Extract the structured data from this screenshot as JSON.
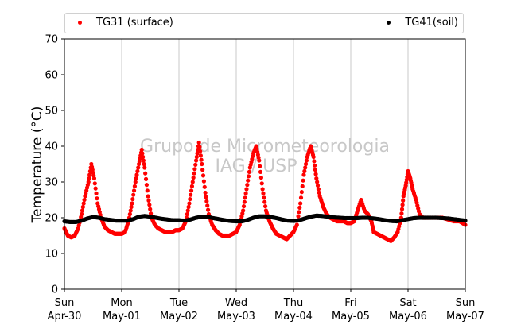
{
  "chart_data": {
    "type": "scatter",
    "ylabel": "Temperature (°C)",
    "ylim": [
      0,
      70
    ],
    "y_ticks": [
      "0",
      "10",
      "20",
      "30",
      "40",
      "50",
      "60",
      "70"
    ],
    "x_ticks": [
      {
        "day": "Sun",
        "date": "Apr-30"
      },
      {
        "day": "Mon",
        "date": "May-01"
      },
      {
        "day": "Tue",
        "date": "May-02"
      },
      {
        "day": "Wed",
        "date": "May-03"
      },
      {
        "day": "Thu",
        "date": "May-04"
      },
      {
        "day": "Fri",
        "date": "May-05"
      },
      {
        "day": "Sat",
        "date": "May-06"
      },
      {
        "day": "Sun",
        "date": "May-07"
      }
    ],
    "x_unit": "days",
    "xlim": [
      0,
      7
    ],
    "grid": "vertical",
    "legend_position": "top",
    "watermark": [
      "Grupo de Micrometeorologia",
      "IAG / USP"
    ],
    "series": [
      {
        "name": "TG31 (surface)",
        "color": "#ff0000",
        "points": [
          [
            0.0,
            17
          ],
          [
            0.06,
            15
          ],
          [
            0.12,
            14.5
          ],
          [
            0.18,
            15
          ],
          [
            0.24,
            17
          ],
          [
            0.3,
            21
          ],
          [
            0.36,
            26
          ],
          [
            0.42,
            30
          ],
          [
            0.47,
            35
          ],
          [
            0.52,
            31
          ],
          [
            0.58,
            24
          ],
          [
            0.64,
            20
          ],
          [
            0.7,
            17.5
          ],
          [
            0.76,
            16.5
          ],
          [
            0.82,
            16
          ],
          [
            0.88,
            15.5
          ],
          [
            0.94,
            15.5
          ],
          [
            1.0,
            15.5
          ],
          [
            1.06,
            16
          ],
          [
            1.12,
            19
          ],
          [
            1.18,
            24
          ],
          [
            1.24,
            30
          ],
          [
            1.3,
            35
          ],
          [
            1.35,
            39
          ],
          [
            1.4,
            34
          ],
          [
            1.46,
            26
          ],
          [
            1.52,
            20
          ],
          [
            1.58,
            18
          ],
          [
            1.64,
            17
          ],
          [
            1.7,
            16.5
          ],
          [
            1.76,
            16
          ],
          [
            1.82,
            16
          ],
          [
            1.88,
            16
          ],
          [
            1.94,
            16.5
          ],
          [
            2.0,
            16.5
          ],
          [
            2.06,
            17
          ],
          [
            2.12,
            19
          ],
          [
            2.18,
            24
          ],
          [
            2.24,
            30
          ],
          [
            2.3,
            36
          ],
          [
            2.35,
            41
          ],
          [
            2.4,
            35
          ],
          [
            2.46,
            27
          ],
          [
            2.52,
            21
          ],
          [
            2.58,
            18
          ],
          [
            2.64,
            16.5
          ],
          [
            2.7,
            15.5
          ],
          [
            2.76,
            15
          ],
          [
            2.82,
            15
          ],
          [
            2.88,
            15
          ],
          [
            2.94,
            15.5
          ],
          [
            3.0,
            16
          ],
          [
            3.06,
            18
          ],
          [
            3.12,
            22
          ],
          [
            3.18,
            28
          ],
          [
            3.24,
            34
          ],
          [
            3.3,
            38
          ],
          [
            3.35,
            40
          ],
          [
            3.4,
            36
          ],
          [
            3.46,
            28
          ],
          [
            3.52,
            22
          ],
          [
            3.58,
            19
          ],
          [
            3.64,
            17
          ],
          [
            3.7,
            15.5
          ],
          [
            3.76,
            15
          ],
          [
            3.82,
            14.5
          ],
          [
            3.88,
            14
          ],
          [
            3.94,
            15
          ],
          [
            4.0,
            16
          ],
          [
            4.06,
            18
          ],
          [
            4.12,
            24
          ],
          [
            4.18,
            32
          ],
          [
            4.24,
            37
          ],
          [
            4.3,
            40
          ],
          [
            4.35,
            37
          ],
          [
            4.4,
            31
          ],
          [
            4.46,
            26
          ],
          [
            4.52,
            23
          ],
          [
            4.58,
            21
          ],
          [
            4.64,
            20
          ],
          [
            4.7,
            19.5
          ],
          [
            4.76,
            19
          ],
          [
            4.82,
            19
          ],
          [
            4.88,
            19
          ],
          [
            4.94,
            18.5
          ],
          [
            5.0,
            18.5
          ],
          [
            5.06,
            19
          ],
          [
            5.12,
            22
          ],
          [
            5.18,
            25
          ],
          [
            5.24,
            22
          ],
          [
            5.3,
            21
          ],
          [
            5.36,
            19
          ],
          [
            5.4,
            16
          ],
          [
            5.46,
            15.5
          ],
          [
            5.52,
            15
          ],
          [
            5.58,
            14.5
          ],
          [
            5.64,
            14
          ],
          [
            5.7,
            13.5
          ],
          [
            5.76,
            14.5
          ],
          [
            5.82,
            16
          ],
          [
            5.88,
            20
          ],
          [
            5.92,
            26
          ],
          [
            5.96,
            29
          ],
          [
            6.0,
            33
          ],
          [
            6.04,
            31
          ],
          [
            6.08,
            28
          ],
          [
            6.14,
            25
          ],
          [
            6.2,
            21
          ],
          [
            6.26,
            20
          ],
          [
            6.32,
            20
          ],
          [
            6.4,
            20
          ],
          [
            6.5,
            20
          ],
          [
            6.6,
            20
          ],
          [
            6.7,
            19.5
          ],
          [
            6.8,
            19
          ],
          [
            6.9,
            19
          ],
          [
            7.0,
            18
          ]
        ]
      },
      {
        "name": "TG41(soil)",
        "color": "#000000",
        "points": [
          [
            0.0,
            19
          ],
          [
            0.1,
            18.8
          ],
          [
            0.2,
            18.8
          ],
          [
            0.3,
            19.2
          ],
          [
            0.4,
            19.8
          ],
          [
            0.5,
            20.2
          ],
          [
            0.6,
            20
          ],
          [
            0.7,
            19.6
          ],
          [
            0.8,
            19.4
          ],
          [
            0.9,
            19.2
          ],
          [
            1.0,
            19.2
          ],
          [
            1.1,
            19.2
          ],
          [
            1.2,
            19.6
          ],
          [
            1.3,
            20.3
          ],
          [
            1.4,
            20.5
          ],
          [
            1.5,
            20.3
          ],
          [
            1.6,
            20
          ],
          [
            1.7,
            19.7
          ],
          [
            1.8,
            19.5
          ],
          [
            1.9,
            19.3
          ],
          [
            2.0,
            19.3
          ],
          [
            2.1,
            19.2
          ],
          [
            2.2,
            19.5
          ],
          [
            2.3,
            20
          ],
          [
            2.4,
            20.3
          ],
          [
            2.5,
            20.2
          ],
          [
            2.6,
            19.9
          ],
          [
            2.7,
            19.6
          ],
          [
            2.8,
            19.3
          ],
          [
            2.9,
            19.1
          ],
          [
            3.0,
            19
          ],
          [
            3.1,
            19
          ],
          [
            3.2,
            19.4
          ],
          [
            3.3,
            20
          ],
          [
            3.4,
            20.4
          ],
          [
            3.5,
            20.4
          ],
          [
            3.6,
            20.2
          ],
          [
            3.7,
            19.9
          ],
          [
            3.8,
            19.5
          ],
          [
            3.9,
            19.2
          ],
          [
            4.0,
            19.1
          ],
          [
            4.1,
            19.3
          ],
          [
            4.2,
            19.8
          ],
          [
            4.3,
            20.3
          ],
          [
            4.4,
            20.6
          ],
          [
            4.5,
            20.5
          ],
          [
            4.6,
            20.3
          ],
          [
            4.7,
            20.1
          ],
          [
            4.8,
            20
          ],
          [
            4.9,
            19.9
          ],
          [
            5.0,
            19.9
          ],
          [
            5.1,
            19.9
          ],
          [
            5.2,
            20
          ],
          [
            5.3,
            20
          ],
          [
            5.4,
            19.8
          ],
          [
            5.5,
            19.6
          ],
          [
            5.6,
            19.3
          ],
          [
            5.7,
            19.1
          ],
          [
            5.8,
            19
          ],
          [
            5.9,
            19.3
          ],
          [
            6.0,
            19.6
          ],
          [
            6.1,
            19.9
          ],
          [
            6.2,
            20
          ],
          [
            6.3,
            20
          ],
          [
            6.4,
            20
          ],
          [
            6.5,
            20
          ],
          [
            6.6,
            19.9
          ],
          [
            6.7,
            19.8
          ],
          [
            6.8,
            19.6
          ],
          [
            6.9,
            19.4
          ],
          [
            7.0,
            19.2
          ]
        ]
      }
    ]
  }
}
